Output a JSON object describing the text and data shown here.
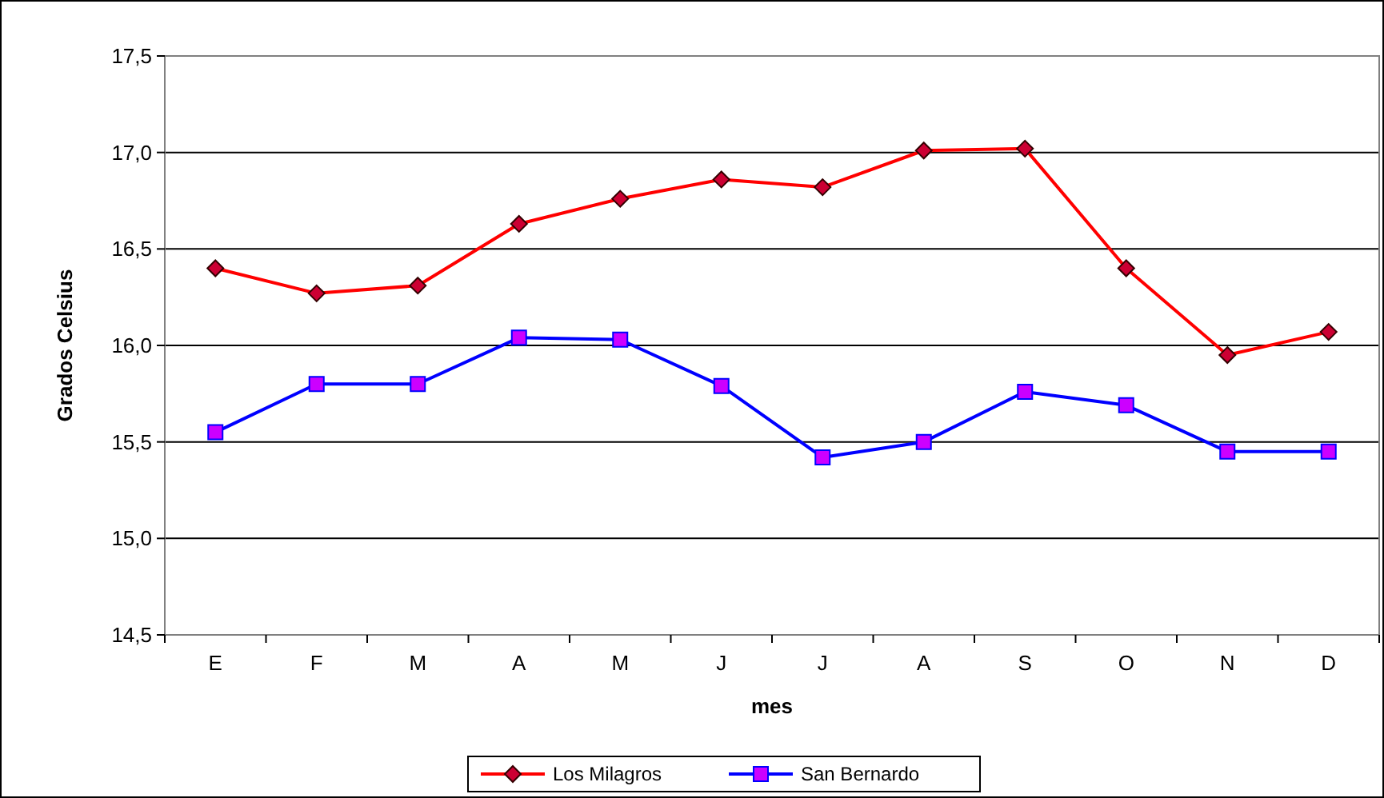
{
  "chart_data": {
    "type": "line",
    "xlabel": "mes",
    "ylabel": "Grados Celsius",
    "categories": [
      "E",
      "F",
      "M",
      "A",
      "M",
      "J",
      "J",
      "A",
      "S",
      "O",
      "N",
      "D"
    ],
    "ylim": [
      14.5,
      17.5
    ],
    "yticks": [
      {
        "value": 14.5,
        "label": "14,5"
      },
      {
        "value": 15,
        "label": "15,0"
      },
      {
        "value": 15.5,
        "label": "15,5"
      },
      {
        "value": 16,
        "label": "16,0"
      },
      {
        "value": 16.5,
        "label": "16,5"
      },
      {
        "value": 17,
        "label": "17,0"
      },
      {
        "value": 17.5,
        "label": "17,5"
      }
    ],
    "grid": "y",
    "legend": "bottom",
    "series": [
      {
        "name": "Los Milagros",
        "color": "#ff0000",
        "marker": "diamond",
        "values": [
          16.4,
          16.27,
          16.31,
          16.63,
          16.76,
          16.86,
          16.82,
          17.01,
          17.02,
          16.4,
          15.95,
          16.07
        ]
      },
      {
        "name": "San Bernardo",
        "color": "#0000ff",
        "marker": "square",
        "values": [
          15.55,
          15.8,
          15.8,
          16.04,
          16.03,
          15.79,
          15.42,
          15.5,
          15.76,
          15.69,
          15.45,
          15.45
        ]
      }
    ]
  }
}
